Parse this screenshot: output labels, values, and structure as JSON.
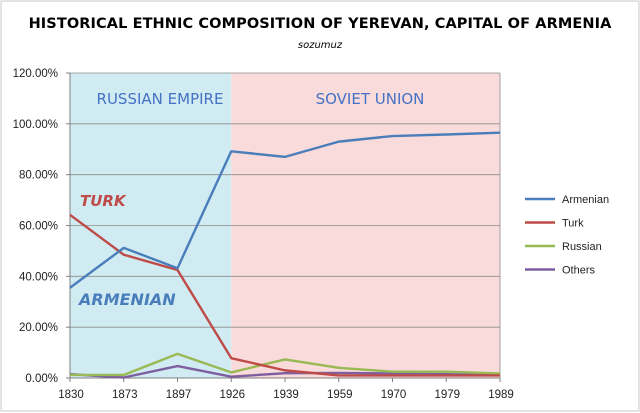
{
  "chart_data": {
    "type": "line",
    "title": "HISTORICAL ETHNIC COMPOSITION OF YEREVAN, CAPITAL OF ARMENIA",
    "subtitle": "sozumuz",
    "categories": [
      "1830",
      "1873",
      "1897",
      "1926",
      "1939",
      "1959",
      "1970",
      "1979",
      "1989"
    ],
    "ylim": [
      0,
      120
    ],
    "y_ticks": [
      "0.00%",
      "20.00%",
      "40.00%",
      "60.00%",
      "80.00%",
      "100.00%",
      "120.00%"
    ],
    "grid": true,
    "legend_position": "right",
    "series": [
      {
        "name": "Armenian",
        "color": "#4a7ebb",
        "values": [
          35.5,
          51.2,
          43.2,
          89.2,
          87.0,
          93.0,
          95.2,
          95.8,
          96.5
        ]
      },
      {
        "name": "Turk",
        "color": "#be4b48",
        "values": [
          64.2,
          48.5,
          42.5,
          7.8,
          3.0,
          1.0,
          1.0,
          1.0,
          1.0
        ]
      },
      {
        "name": "Russian",
        "color": "#98b954",
        "values": [
          1.2,
          1.2,
          9.5,
          2.2,
          7.3,
          4.0,
          2.5,
          2.5,
          1.8
        ]
      },
      {
        "name": "Others",
        "color": "#7d5fa0",
        "values": [
          1.5,
          0.2,
          4.7,
          0.5,
          1.9,
          2.0,
          1.8,
          1.5,
          1.2
        ]
      }
    ],
    "regions": [
      {
        "label": "RUSSIAN EMPIRE",
        "from": "1830",
        "to": "1926",
        "color": "#d1ebf3"
      },
      {
        "label": "SOVIET UNION",
        "from": "1926",
        "to": "1989",
        "color": "#fadbdb"
      }
    ],
    "annotations": [
      {
        "text": "TURK",
        "color": "#be4b48"
      },
      {
        "text": "ARMENIAN",
        "color": "#4a7ebb"
      }
    ]
  }
}
